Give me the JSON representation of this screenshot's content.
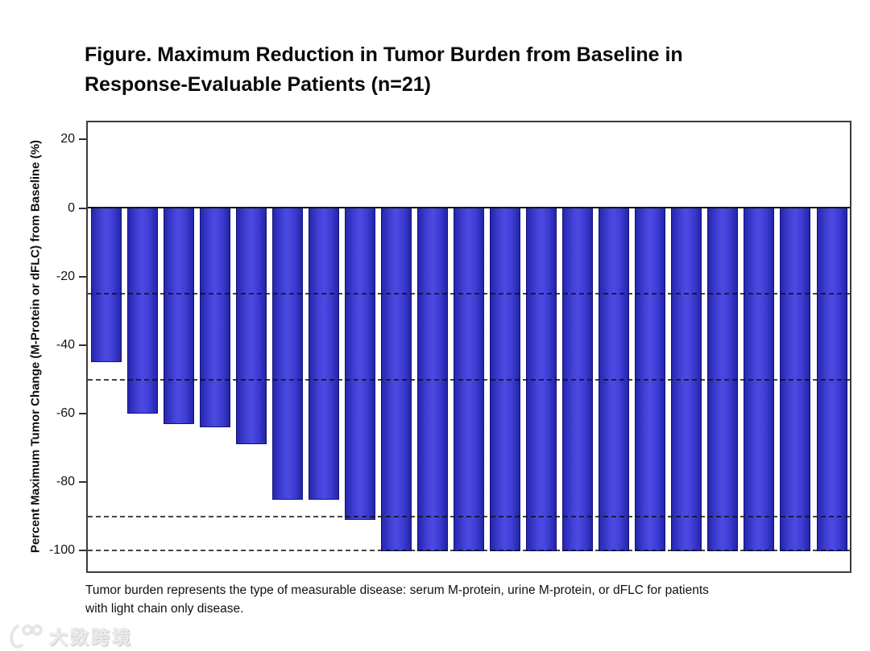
{
  "figure": {
    "title_lines": [
      "Figure. Maximum Reduction in Tumor Burden from Baseline in",
      "Response-Evaluable Patients (n=21)"
    ],
    "footnote_lines": [
      "Tumor burden represents the type of measurable disease: serum M-protein, urine M-protein, or dFLC for patients",
      "with light chain only disease."
    ]
  },
  "chart_data": {
    "type": "bar",
    "title": "Figure. Maximum Reduction in Tumor Burden from Baseline in Response-Evaluable Patients (n=21)",
    "ylabel": "Percent Maximum Tumor Change (M-Protein or dFLC) from Baseline (%)",
    "xlabel": "",
    "n_patients": 21,
    "values": [
      -45,
      -60,
      -63,
      -64,
      -69,
      -85,
      -85,
      -91,
      -100,
      -100,
      -100,
      -100,
      -100,
      -100,
      -100,
      -100,
      -100,
      -100,
      -100,
      -100,
      -100
    ],
    "y_ticks": [
      20,
      0,
      -20,
      -40,
      -60,
      -80,
      -100
    ],
    "ylim": [
      25,
      -106
    ],
    "reference_lines": [
      -25,
      -50,
      -90,
      -100
    ],
    "grid": "horizontal dashed lines at reference values",
    "legend": "none",
    "orientation": "vertical-waterfall",
    "bar_color": "#3b3bd2",
    "bar_edge_color": "#12127c",
    "axis_color": "#3c3c3c"
  },
  "watermark": {
    "logo": "100-swirl-logo",
    "text": "大数跨境"
  }
}
